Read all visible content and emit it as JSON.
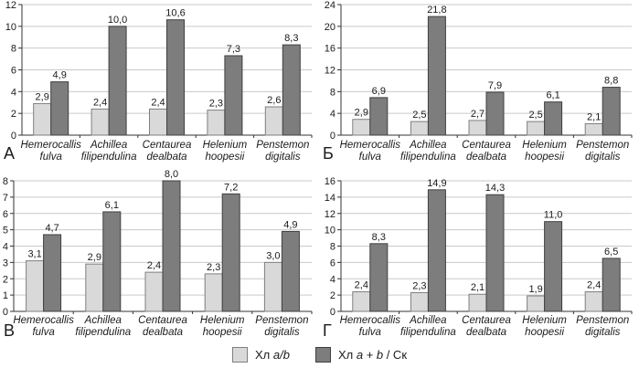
{
  "chart_data": [
    {
      "type": "bar",
      "panel_label": "А",
      "categories": [
        [
          "Hemerocallis",
          "fulva"
        ],
        [
          "Achillea",
          "filipendulina"
        ],
        [
          "Centaurea",
          "dealbata"
        ],
        [
          "Helenium",
          "hoopesii"
        ],
        [
          "Penstemon",
          "digitalis"
        ]
      ],
      "series": [
        {
          "name": "Хл a/b",
          "values": [
            2.9,
            2.4,
            2.4,
            2.3,
            2.6
          ]
        },
        {
          "name": "Хл a + b / Ск",
          "values": [
            4.9,
            10.0,
            10.6,
            7.3,
            8.3
          ]
        }
      ],
      "ylim": [
        0,
        12
      ],
      "ytick_step": 2,
      "grid": true,
      "value_labels": true,
      "decimal_separator": ","
    },
    {
      "type": "bar",
      "panel_label": "Б",
      "categories": [
        [
          "Hemerocallis",
          "fulva"
        ],
        [
          "Achillea",
          "filipendulina"
        ],
        [
          "Centaurea",
          "dealbata"
        ],
        [
          "Helenium",
          "hoopesii"
        ],
        [
          "Penstemon",
          "digitalis"
        ]
      ],
      "series": [
        {
          "name": "Хл a/b",
          "values": [
            2.9,
            2.5,
            2.7,
            2.5,
            2.1
          ]
        },
        {
          "name": "Хл a + b / Ск",
          "values": [
            6.9,
            21.8,
            7.9,
            6.1,
            8.8
          ]
        }
      ],
      "ylim": [
        0,
        24
      ],
      "ytick_step": 4,
      "grid": true,
      "value_labels": true,
      "decimal_separator": ","
    },
    {
      "type": "bar",
      "panel_label": "В",
      "categories": [
        [
          "Hemerocallis",
          "fulva"
        ],
        [
          "Achillea",
          "filipendulina"
        ],
        [
          "Centaurea",
          "dealbata"
        ],
        [
          "Helenium",
          "hoopesii"
        ],
        [
          "Penstemon",
          "digitalis"
        ]
      ],
      "series": [
        {
          "name": "Хл a/b",
          "values": [
            3.1,
            2.9,
            2.4,
            2.3,
            3.0
          ]
        },
        {
          "name": "Хл a + b / Ск",
          "values": [
            4.7,
            6.1,
            8.0,
            7.2,
            4.9
          ]
        }
      ],
      "ylim": [
        0,
        8
      ],
      "ytick_step": 1,
      "grid": true,
      "value_labels": true,
      "decimal_separator": ","
    },
    {
      "type": "bar",
      "panel_label": "Г",
      "categories": [
        [
          "Hemerocallis",
          "fulva"
        ],
        [
          "Achillea",
          "filipendulina"
        ],
        [
          "Centaurea",
          "dealbata"
        ],
        [
          "Helenium",
          "hoopesii"
        ],
        [
          "Penstemon",
          "digitalis"
        ]
      ],
      "series": [
        {
          "name": "Хл a/b",
          "values": [
            2.4,
            2.3,
            2.1,
            1.9,
            2.4
          ]
        },
        {
          "name": "Хл a + b / Ск",
          "values": [
            8.3,
            14.9,
            14.3,
            11.0,
            6.5
          ]
        }
      ],
      "ylim": [
        0,
        16
      ],
      "ytick_step": 2,
      "grid": true,
      "value_labels": true,
      "decimal_separator": ","
    }
  ],
  "legend": {
    "position": "bottom",
    "items": [
      {
        "swatch_color": "#d9d9d9",
        "swatch_border": "#7f7f7f",
        "prefix": "Хл ",
        "italic": "a/b",
        "suffix": ""
      },
      {
        "swatch_color": "#7d7d7d",
        "swatch_border": "#3f3f3f",
        "prefix": "Хл ",
        "italic": "a + b",
        "suffix": " / Ск"
      }
    ]
  },
  "colors": {
    "bar_light": "#d9d9d9",
    "bar_light_border": "#7f7f7f",
    "bar_dark": "#7d7d7d",
    "bar_dark_border": "#3f3f3f",
    "grid": "#c9c9c9",
    "axis": "#333333",
    "text": "#1a1a1a"
  }
}
